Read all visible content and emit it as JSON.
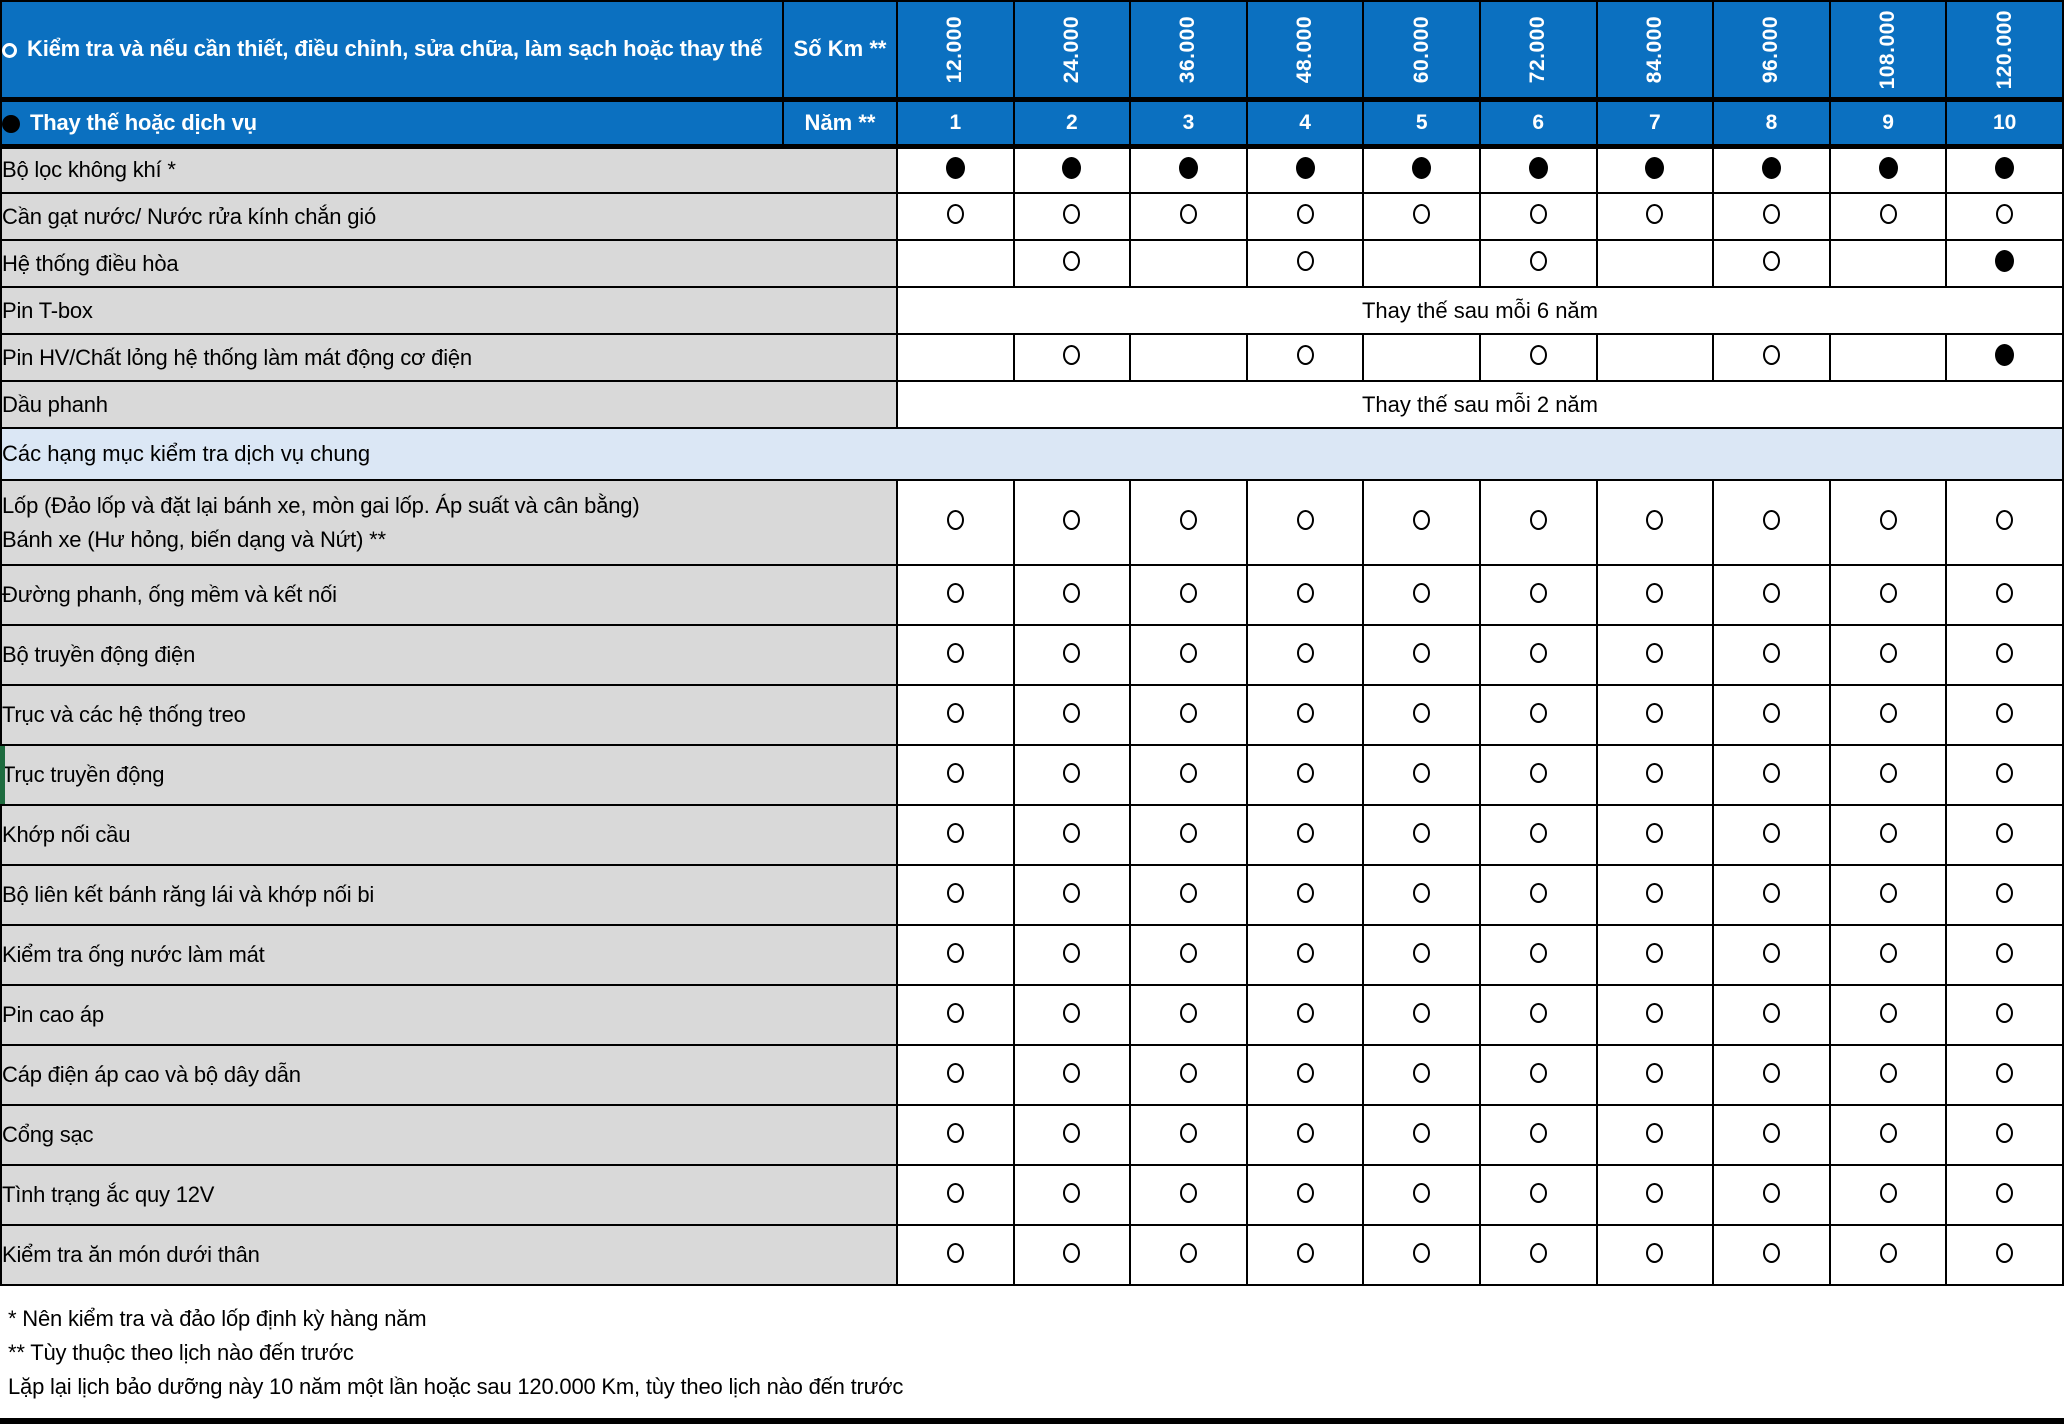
{
  "header": {
    "legend_inspect_symbol": "open-circle",
    "legend_inspect": "Kiểm tra và nếu cần thiết, điều chỉnh, sửa chữa, làm sạch hoặc thay thế",
    "legend_replace_symbol": "filled-circle",
    "legend_replace": "Thay thế hoặc dịch vụ",
    "km_label": "Số Km **",
    "year_label": "Năm **",
    "km_values": [
      "12.000",
      "24.000",
      "36.000",
      "48.000",
      "60.000",
      "72.000",
      "84.000",
      "96.000",
      "108.000",
      "120.000"
    ],
    "year_values": [
      "1",
      "2",
      "3",
      "4",
      "5",
      "6",
      "7",
      "8",
      "9",
      "10"
    ]
  },
  "rows": [
    {
      "label": "Bộ lọc không khí *",
      "cells": [
        "filled",
        "filled",
        "filled",
        "filled",
        "filled",
        "filled",
        "filled",
        "filled",
        "filled",
        "filled"
      ]
    },
    {
      "label": "Cần gạt nước/ Nước rửa kính chắn gió",
      "cells": [
        "open",
        "open",
        "open",
        "open",
        "open",
        "open",
        "open",
        "open",
        "open",
        "open"
      ]
    },
    {
      "label": "Hệ thống điều hòa",
      "cells": [
        "",
        "open",
        "",
        "open",
        "",
        "open",
        "",
        "open",
        "",
        "filled"
      ]
    },
    {
      "label": "Pin T-box",
      "type": "span",
      "span_text": "Thay thế sau mỗi 6 năm"
    },
    {
      "label": "Pin HV/Chất lỏng hệ thống làm mát động cơ điện",
      "cells": [
        "",
        "open",
        "",
        "open",
        "",
        "open",
        "",
        "open",
        "",
        "filled"
      ]
    },
    {
      "label": "Dầu phanh",
      "type": "span",
      "span_text": "Thay thế sau mỗi 2 năm"
    },
    {
      "label": "Các hạng mục kiểm tra dịch vụ chung",
      "type": "section"
    },
    {
      "label": "Lốp (Đảo lốp và đặt lại bánh xe, mòn gai lốp. Áp suất và cân bằng)",
      "label2": "Bánh xe (Hư hỏng, biến dạng và Nứt) **",
      "cells": [
        "open",
        "open",
        "open",
        "open",
        "open",
        "open",
        "open",
        "open",
        "open",
        "open"
      ]
    },
    {
      "label": "Đường phanh, ống mềm và kết nối",
      "group": "general",
      "cells": [
        "open",
        "open",
        "open",
        "open",
        "open",
        "open",
        "open",
        "open",
        "open",
        "open"
      ]
    },
    {
      "label": "Bộ truyền động điện",
      "group": "general",
      "cells": [
        "open",
        "open",
        "open",
        "open",
        "open",
        "open",
        "open",
        "open",
        "open",
        "open"
      ]
    },
    {
      "label": "Trục và các hệ thống treo",
      "group": "general",
      "cells": [
        "open",
        "open",
        "open",
        "open",
        "open",
        "open",
        "open",
        "open",
        "open",
        "open"
      ]
    },
    {
      "label": "Trục truyền động",
      "group": "general",
      "marker": true,
      "cells": [
        "open",
        "open",
        "open",
        "open",
        "open",
        "open",
        "open",
        "open",
        "open",
        "open"
      ]
    },
    {
      "label": "Khớp nối cầu",
      "group": "general",
      "cells": [
        "open",
        "open",
        "open",
        "open",
        "open",
        "open",
        "open",
        "open",
        "open",
        "open"
      ]
    },
    {
      "label": "Bộ liên kết bánh răng lái và khớp nối bi",
      "group": "general",
      "cells": [
        "open",
        "open",
        "open",
        "open",
        "open",
        "open",
        "open",
        "open",
        "open",
        "open"
      ]
    },
    {
      "label": "Kiểm tra ống nước làm mát",
      "group": "general",
      "cells": [
        "open",
        "open",
        "open",
        "open",
        "open",
        "open",
        "open",
        "open",
        "open",
        "open"
      ]
    },
    {
      "label": "Pin cao áp",
      "group": "general",
      "cells": [
        "open",
        "open",
        "open",
        "open",
        "open",
        "open",
        "open",
        "open",
        "open",
        "open"
      ]
    },
    {
      "label": "Cáp điện áp cao và bộ dây dẫn",
      "group": "general",
      "cells": [
        "open",
        "open",
        "open",
        "open",
        "open",
        "open",
        "open",
        "open",
        "open",
        "open"
      ]
    },
    {
      "label": "Cổng sạc",
      "group": "general",
      "cells": [
        "open",
        "open",
        "open",
        "open",
        "open",
        "open",
        "open",
        "open",
        "open",
        "open"
      ]
    },
    {
      "label": "Tình trạng ắc quy 12V",
      "group": "general",
      "cells": [
        "open",
        "open",
        "open",
        "open",
        "open",
        "open",
        "open",
        "open",
        "open",
        "open"
      ]
    },
    {
      "label": "Kiểm tra ăn món dưới thân",
      "group": "general",
      "cells": [
        "open",
        "open",
        "open",
        "open",
        "open",
        "open",
        "open",
        "open",
        "open",
        "open"
      ]
    }
  ],
  "footnotes": [
    "* Nên kiểm tra và đảo lốp định kỳ hàng năm",
    "** Tùy thuộc theo lịch nào đến trước",
    "Lặp lại lịch bảo dưỡng này 10 năm một lần hoặc sau 120.000 Km, tùy theo lịch nào đến trước"
  ],
  "colors": {
    "header_blue": "#0b70c0",
    "section_blue": "#dbe7f5",
    "label_gray": "#d9d9d9",
    "marker_green": "#1d6b3e"
  }
}
